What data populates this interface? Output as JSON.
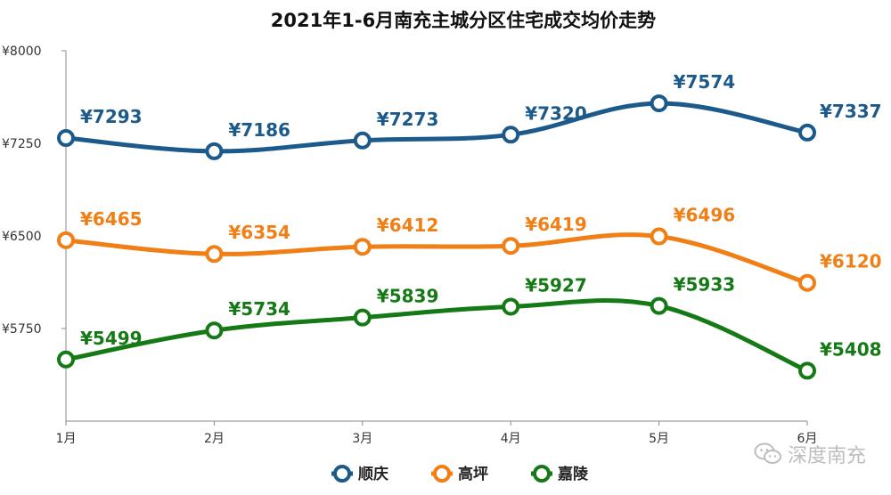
{
  "chart_data": {
    "type": "line",
    "title": "2021年1-6月南充主城分区住宅成交均价走势",
    "categories": [
      "1月",
      "2月",
      "3月",
      "4月",
      "5月",
      "6月"
    ],
    "ylim": [
      5000,
      8000
    ],
    "yticks": [
      5750,
      6500,
      7250,
      8000
    ],
    "ytick_labels": [
      "¥5750",
      "¥6500",
      "¥7250",
      "¥8000"
    ],
    "value_prefix": "¥",
    "grid": false,
    "legend_position": "bottom",
    "series": [
      {
        "name": "顺庆",
        "color": "#1b5a8a",
        "values": [
          7293,
          7186,
          7273,
          7320,
          7574,
          7337
        ]
      },
      {
        "name": "高坪",
        "color": "#f07f16",
        "values": [
          6465,
          6354,
          6412,
          6419,
          6496,
          6120
        ]
      },
      {
        "name": "嘉陵",
        "color": "#157a16",
        "values": [
          5499,
          5734,
          5839,
          5927,
          5933,
          5408
        ]
      }
    ]
  },
  "watermark": {
    "text": "深度南充",
    "icon": "wechat-icon"
  }
}
